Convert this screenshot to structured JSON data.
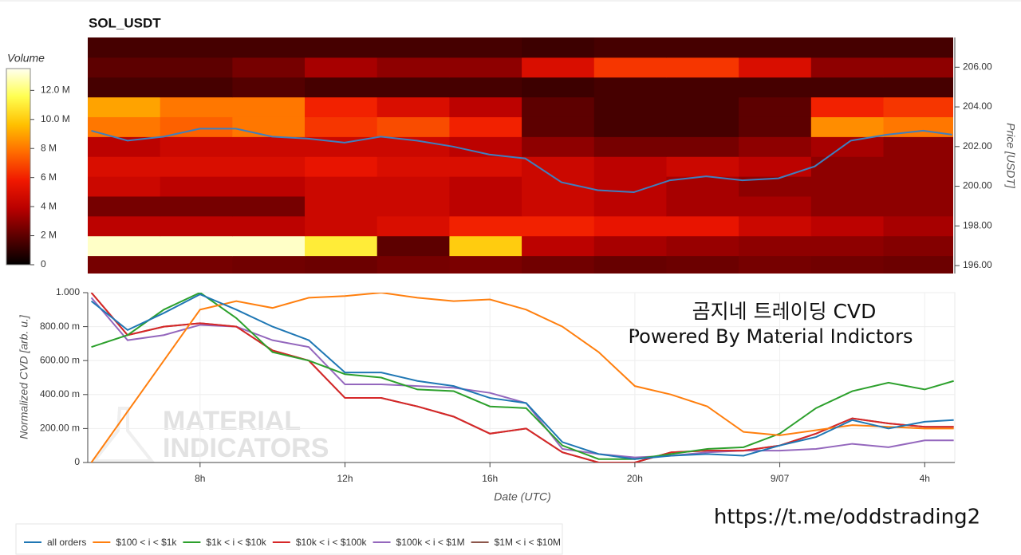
{
  "chart_data": [
    {
      "type": "heatmap",
      "title": "SOL_USDT",
      "colorbar": {
        "title": "Volume",
        "lim": [
          0,
          13.5
        ],
        "ticks": [
          0,
          {
            "value": 2,
            "label": "2 M"
          },
          {
            "value": 4,
            "label": "4 M"
          },
          {
            "value": 6,
            "label": "6 M"
          },
          {
            "value": 8,
            "label": "8 M"
          },
          {
            "value": 10,
            "label": "10.0 M"
          },
          {
            "value": 12,
            "label": "12.0 M"
          }
        ],
        "colors": [
          "#000000",
          "#5a0000",
          "#b80000",
          "#f01800",
          "#ff6a00",
          "#ffc000",
          "#ffff50",
          "#fffff0"
        ]
      },
      "x_edges": [
        4.9,
        6.9,
        8.9,
        10.9,
        12.9,
        14.9,
        16.9,
        18.9,
        20.9,
        22.9,
        24.9,
        26.9,
        28.9
      ],
      "y_edges": [
        195.5,
        196.5,
        197.5,
        198.5,
        199.5,
        200.5,
        201.5,
        202.5,
        203.5,
        204.5,
        205.5,
        206.5,
        207.5
      ],
      "values": [
        [
          2.5,
          2.5,
          2.4,
          2.3,
          2.5,
          2.6,
          2.4,
          2.2,
          2.3,
          2.5,
          2.4,
          2.3
        ],
        [
          13,
          13,
          13,
          11,
          2,
          10,
          4,
          3.5,
          3.2,
          3,
          3,
          2.8
        ],
        [
          4,
          4,
          4,
          4.5,
          5,
          6,
          6,
          5.5,
          5.5,
          4.5,
          4,
          3.5
        ],
        [
          2.5,
          2.5,
          2.5,
          4.5,
          4.5,
          4,
          4.5,
          4,
          3.5,
          3.5,
          3,
          3
        ],
        [
          4.5,
          4,
          4,
          4.5,
          4.5,
          4,
          4.5,
          4,
          3.5,
          3,
          3,
          3
        ],
        [
          5,
          5,
          5,
          5.5,
          5,
          5,
          4.5,
          4,
          4.5,
          4,
          3,
          3
        ],
        [
          4,
          4.5,
          4.5,
          4.5,
          4.5,
          4,
          3,
          2.5,
          2.5,
          3,
          3.5,
          3
        ],
        [
          8,
          7.5,
          8,
          6.5,
          7,
          6,
          2,
          1.5,
          1.5,
          2,
          8.5,
          8
        ],
        [
          9,
          8,
          8,
          6,
          5,
          4,
          2,
          1.5,
          1.5,
          2,
          6,
          6.5
        ],
        [
          1.5,
          1.5,
          1.8,
          1.5,
          1.5,
          1.5,
          1.3,
          1.5,
          1.5,
          1.5,
          1.5,
          1.5
        ],
        [
          2,
          2,
          2.5,
          3.5,
          3,
          3,
          5,
          6.5,
          6.5,
          5,
          3,
          3
        ],
        [
          1.5,
          1.5,
          1.5,
          1.5,
          1.5,
          1.5,
          1.3,
          1.5,
          1.5,
          1.5,
          1.5,
          1.5
        ]
      ],
      "xlim": [
        4.9,
        28.83
      ],
      "ylim": [
        195.6,
        207.5
      ],
      "yticks": [
        {
          "value": 196,
          "label": "196.00"
        },
        {
          "value": 198,
          "label": "198.00"
        },
        {
          "value": 200,
          "label": "200.00"
        },
        {
          "value": 202,
          "label": "202.00"
        },
        {
          "value": 204,
          "label": "204.00"
        },
        {
          "value": 206,
          "label": "206.00"
        }
      ],
      "ylabel": "Price [USDT]",
      "price": {
        "color": "#3f7fbf",
        "x": [
          5,
          6,
          7,
          8,
          9,
          10,
          11,
          12,
          13,
          14,
          15,
          16,
          17,
          18,
          19,
          20,
          21,
          22,
          23,
          24,
          25,
          26,
          27,
          28,
          28.8
        ],
        "values": [
          202.8,
          202.3,
          202.5,
          202.9,
          202.9,
          202.5,
          202.4,
          202.2,
          202.5,
          202.3,
          202.0,
          201.6,
          201.4,
          200.2,
          199.8,
          199.7,
          200.3,
          200.5,
          200.3,
          200.4,
          201.0,
          202.3,
          202.6,
          202.8,
          202.6
        ]
      }
    },
    {
      "type": "line",
      "ylabel": "Normalized CVD [arb. u.]",
      "xlabel": "Date (UTC)",
      "x": [
        5,
        6,
        7,
        8,
        9,
        10,
        11,
        12,
        13,
        14,
        15,
        16,
        17,
        18,
        19,
        20,
        21,
        22,
        23,
        24,
        25,
        26,
        27,
        28,
        28.8
      ],
      "xlim": [
        4.9,
        28.83
      ],
      "xticks": [
        {
          "value": 8,
          "label": "8h"
        },
        {
          "value": 12,
          "label": "12h"
        },
        {
          "value": 16,
          "label": "16h"
        },
        {
          "value": 20,
          "label": "20h"
        },
        {
          "value": 24,
          "label": "9/07"
        },
        {
          "value": 28,
          "label": "4h"
        }
      ],
      "ylim": [
        0,
        1
      ],
      "yticks": [
        0,
        {
          "value": 0.2,
          "label": "200.00 m"
        },
        {
          "value": 0.4,
          "label": "400.00 m"
        },
        {
          "value": 0.6,
          "label": "600.00 m"
        },
        {
          "value": 0.8,
          "label": "800.00 m"
        },
        {
          "value": 1,
          "label": "1.000"
        }
      ],
      "grid": true,
      "legend": "bottom-left",
      "series": [
        {
          "name": "all orders",
          "color": "#1f77b4",
          "values": [
            0.95,
            0.78,
            0.88,
            0.99,
            0.9,
            0.8,
            0.72,
            0.53,
            0.53,
            0.48,
            0.45,
            0.38,
            0.35,
            0.12,
            0.05,
            0.02,
            0.04,
            0.05,
            0.04,
            0.1,
            0.15,
            0.25,
            0.2,
            0.24,
            0.25
          ]
        },
        {
          "name": "$100 < i < $1k",
          "color": "#ff7f0e",
          "values": [
            0.0,
            0.3,
            0.6,
            0.9,
            0.95,
            0.91,
            0.97,
            0.98,
            1.0,
            0.97,
            0.95,
            0.96,
            0.9,
            0.8,
            0.65,
            0.45,
            0.4,
            0.33,
            0.18,
            0.16,
            0.19,
            0.22,
            0.21,
            0.2,
            0.2
          ]
        },
        {
          "name": "$1k < i < $10k",
          "color": "#2ca02c",
          "values": [
            0.68,
            0.75,
            0.9,
            1.0,
            0.85,
            0.65,
            0.6,
            0.52,
            0.5,
            0.43,
            0.42,
            0.33,
            0.32,
            0.1,
            0.02,
            0.02,
            0.05,
            0.08,
            0.09,
            0.17,
            0.32,
            0.42,
            0.47,
            0.43,
            0.48
          ]
        },
        {
          "name": "$10k < i < $100k",
          "color": "#d62728",
          "values": [
            1.0,
            0.75,
            0.8,
            0.82,
            0.8,
            0.66,
            0.6,
            0.38,
            0.38,
            0.33,
            0.27,
            0.17,
            0.2,
            0.06,
            0.0,
            0.0,
            0.06,
            0.07,
            0.07,
            0.1,
            0.17,
            0.26,
            0.23,
            0.21,
            0.21
          ]
        },
        {
          "name": "$100k < i < $1M",
          "color": "#9467bd",
          "values": [
            0.97,
            0.72,
            0.75,
            0.81,
            0.8,
            0.72,
            0.68,
            0.46,
            0.46,
            0.45,
            0.44,
            0.41,
            0.35,
            0.08,
            0.05,
            0.03,
            0.04,
            0.06,
            0.07,
            0.07,
            0.08,
            0.11,
            0.09,
            0.13,
            0.13
          ]
        },
        {
          "name": "$1M < i < $10M",
          "color": "#8c564b",
          "values": [
            1.0,
            0.75,
            0.8,
            0.82,
            0.8,
            0.66,
            0.6,
            0.38,
            0.38,
            0.33,
            0.27,
            0.17,
            0.2,
            0.06,
            0.0,
            0.0,
            0.06,
            0.07,
            0.07,
            0.1,
            0.17,
            0.26,
            0.23,
            0.21,
            0.21
          ]
        }
      ],
      "annotations": [
        "곰지네 트레이딩 CVD",
        "Powered By Material Indictors",
        "https://t.me/oddstrading2"
      ],
      "watermark": [
        "MATERIAL",
        "INDICATORS"
      ]
    }
  ]
}
